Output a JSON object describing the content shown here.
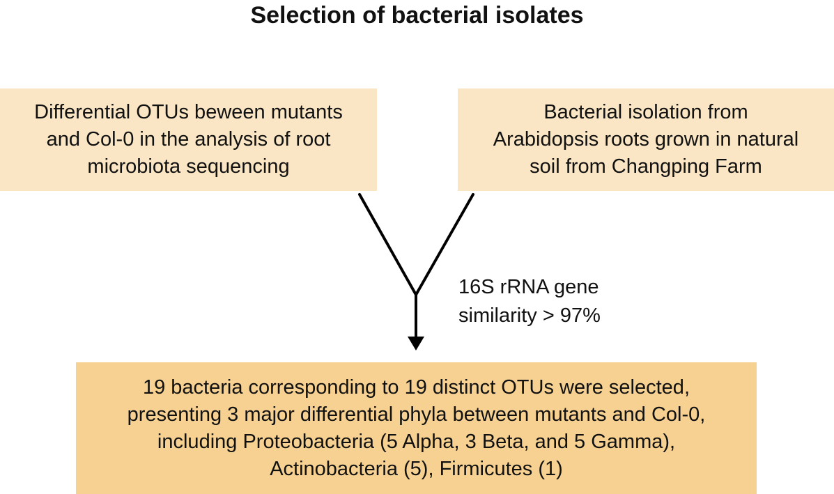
{
  "title": "Selection of bacterial isolates",
  "nodes": {
    "source_left": {
      "lines": [
        "Differential OTUs beween mutants",
        "and Col-0 in the analysis of root",
        "microbiota sequencing"
      ]
    },
    "source_right": {
      "lines": [
        "Bacterial isolation from",
        "Arabidopsis roots grown in natural",
        "soil from Changping Farm"
      ]
    },
    "result": {
      "lines": [
        "19 bacteria corresponding to 19 distinct OTUs were selected,",
        "presenting 3 major differential phyla between mutants and Col-0,",
        "including Proteobacteria (5 Alpha, 3 Beta, and 5 Gamma),",
        "Actinobacteria (5), Firmicutes (1)"
      ]
    }
  },
  "edge": {
    "label_lines": [
      "16S rRNA gene",
      "similarity > 97%"
    ]
  },
  "colors": {
    "source_fill": "#fae6c4",
    "result_fill": "#f6d192",
    "line": "#000000"
  }
}
